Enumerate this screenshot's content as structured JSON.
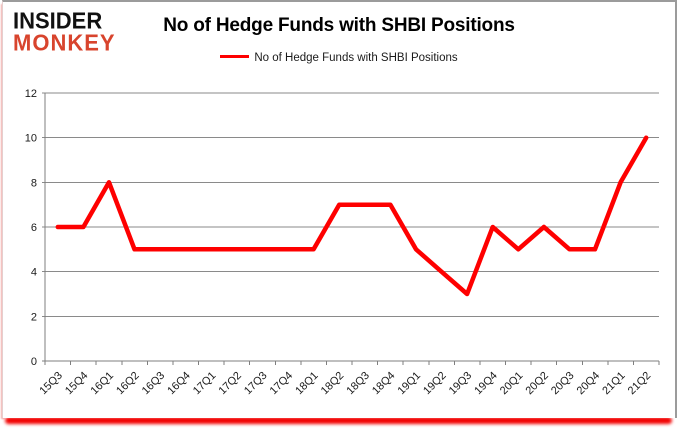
{
  "logo": {
    "line1": "INSIDER",
    "line2": "MONKEY"
  },
  "title": "No of Hedge Funds with SHBI Positions",
  "legend": {
    "label": "No of Hedge Funds with SHBI Positions"
  },
  "colors": {
    "line": "#fe0000",
    "grid": "#8a8a8a",
    "axis": "#7f7f7f",
    "label_text": "#1a1a1a",
    "logo_black": "#111111",
    "logo_red": "#d8442d",
    "bottom_glow": "#f20000"
  },
  "chart_data": {
    "type": "line",
    "title": "No of Hedge Funds with SHBI Positions",
    "categories": [
      "15Q3",
      "15Q4",
      "16Q1",
      "16Q2",
      "16Q3",
      "16Q4",
      "17Q1",
      "17Q2",
      "17Q3",
      "17Q4",
      "18Q1",
      "18Q2",
      "18Q3",
      "18Q4",
      "19Q1",
      "19Q2",
      "19Q3",
      "19Q4",
      "20Q1",
      "20Q2",
      "20Q3",
      "20Q4",
      "21Q1",
      "21Q2"
    ],
    "series": [
      {
        "name": "No of Hedge Funds with SHBI Positions",
        "values": [
          6,
          6,
          8,
          5,
          5,
          5,
          5,
          5,
          5,
          5,
          5,
          7,
          7,
          7,
          5,
          4,
          3,
          6,
          5,
          6,
          5,
          5,
          8,
          10
        ]
      }
    ],
    "xlabel": "",
    "ylabel": "",
    "ylim": [
      0,
      12
    ],
    "yticks": [
      0,
      2,
      4,
      6,
      8,
      10,
      12
    ],
    "grid": true,
    "legend_position": "top-center"
  }
}
